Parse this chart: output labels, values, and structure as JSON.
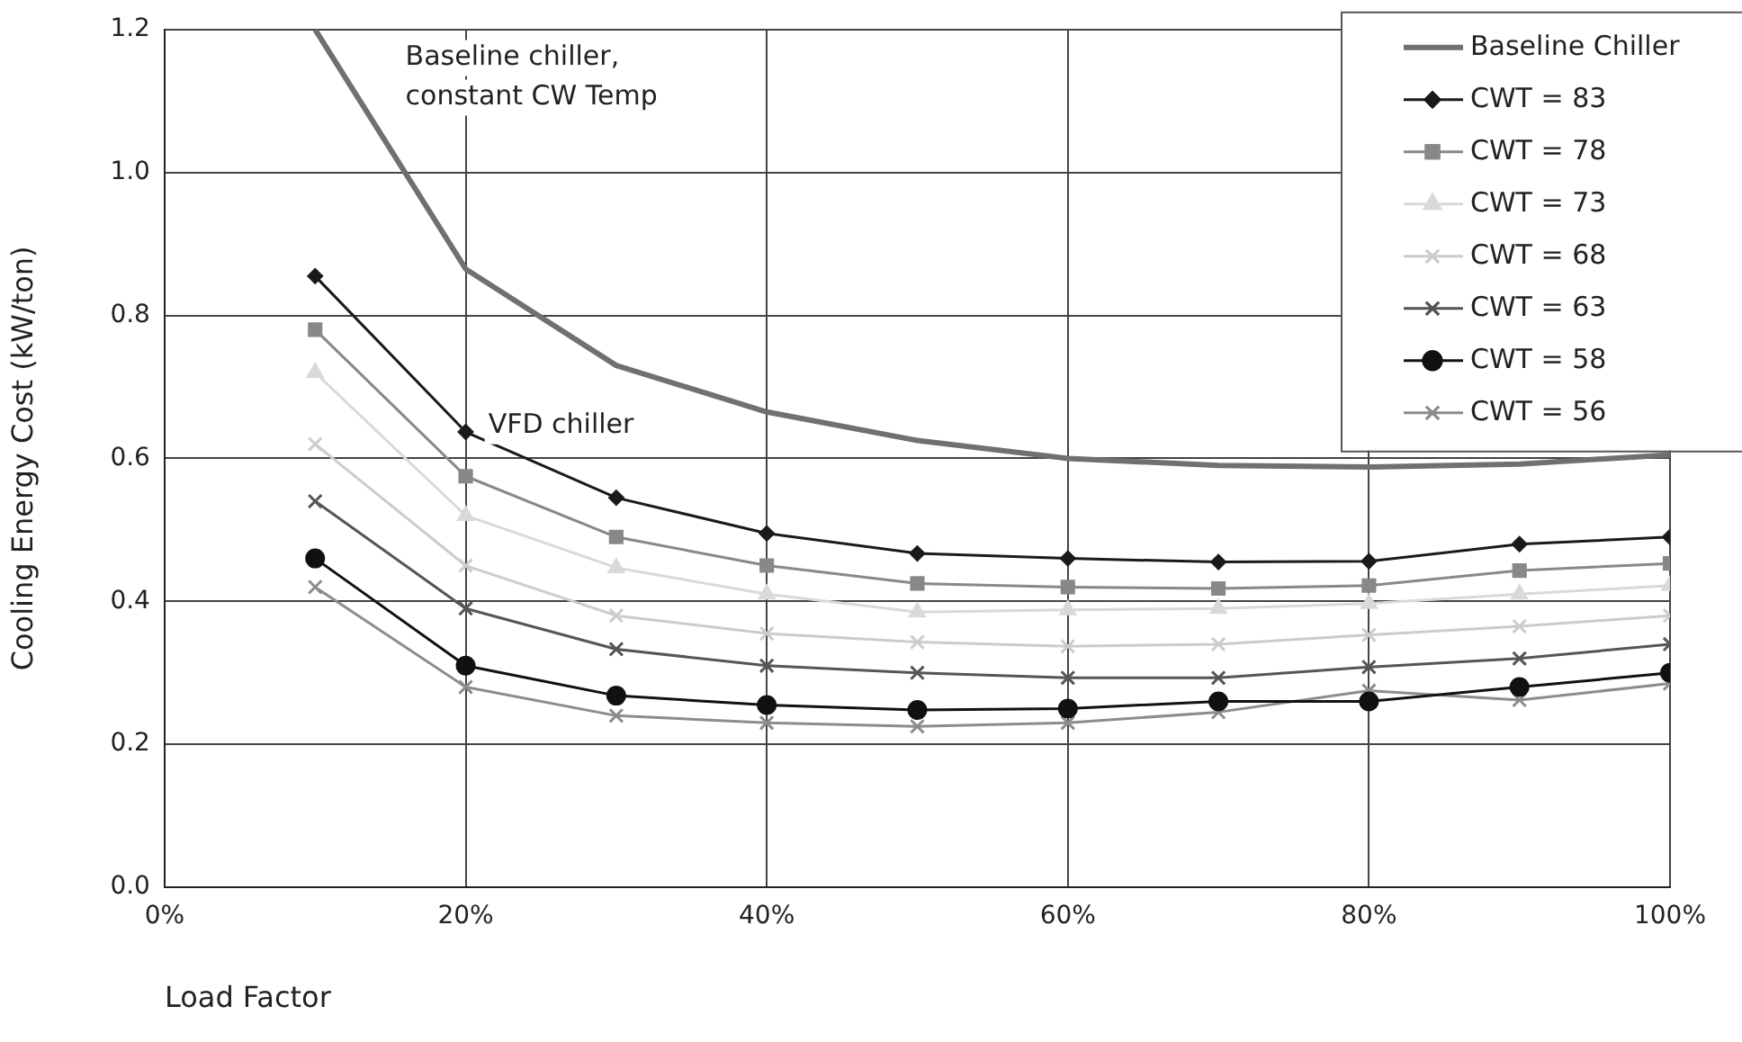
{
  "chart_data": {
    "type": "line",
    "xlabel": "Load Factor",
    "ylabel": "Cooling Energy Cost (kW/ton)",
    "x": [
      10,
      20,
      30,
      40,
      50,
      60,
      70,
      80,
      90,
      100
    ],
    "xlim": [
      0,
      100
    ],
    "xticks": [
      {
        "value": 0,
        "label": "0%"
      },
      {
        "value": 20,
        "label": "20%"
      },
      {
        "value": 40,
        "label": "40%"
      },
      {
        "value": 60,
        "label": "60%"
      },
      {
        "value": 80,
        "label": "80%"
      },
      {
        "value": 100,
        "label": "100%"
      }
    ],
    "ylim": [
      0,
      1.2
    ],
    "yticks": [
      {
        "value": 0,
        "label": "0.0"
      },
      {
        "value": 0.2,
        "label": "0.2"
      },
      {
        "value": 0.4,
        "label": "0.4"
      },
      {
        "value": 0.6,
        "label": "0.6"
      },
      {
        "value": 0.8,
        "label": "0.8"
      },
      {
        "value": 1.0,
        "label": "1.0"
      },
      {
        "value": 1.2,
        "label": "1.2"
      }
    ],
    "grid": true,
    "legend": "top right",
    "line_style": "solid",
    "series": [
      {
        "name": "Baseline Chiller",
        "color": "#707070",
        "marker": "none",
        "values": [
          1.2,
          0.865,
          0.73,
          0.665,
          0.625,
          0.6,
          0.59,
          0.588,
          0.592,
          0.605
        ]
      },
      {
        "name": "CWT = 83",
        "color": "#1a1a1a",
        "marker": "diamond",
        "values": [
          0.855,
          0.637,
          0.545,
          0.495,
          0.467,
          0.46,
          0.455,
          0.456,
          0.48,
          0.49
        ]
      },
      {
        "name": "CWT = 78",
        "color": "#888888",
        "marker": "square",
        "values": [
          0.78,
          0.575,
          0.49,
          0.45,
          0.425,
          0.42,
          0.418,
          0.422,
          0.443,
          0.453
        ]
      },
      {
        "name": "CWT = 73",
        "color": "#d9d9d9",
        "marker": "triangle",
        "values": [
          0.72,
          0.52,
          0.447,
          0.41,
          0.385,
          0.388,
          0.39,
          0.397,
          0.41,
          0.422
        ]
      },
      {
        "name": "CWT = 68",
        "color": "#cccccc",
        "marker": "cross",
        "values": [
          0.62,
          0.45,
          0.38,
          0.355,
          0.343,
          0.337,
          0.34,
          0.353,
          0.365,
          0.38
        ]
      },
      {
        "name": "CWT = 63",
        "color": "#555555",
        "marker": "cross",
        "values": [
          0.54,
          0.39,
          0.333,
          0.31,
          0.3,
          0.293,
          0.293,
          0.308,
          0.32,
          0.34
        ]
      },
      {
        "name": "CWT = 58",
        "color": "#111111",
        "marker": "circle",
        "values": [
          0.46,
          0.31,
          0.268,
          0.255,
          0.248,
          0.25,
          0.26,
          0.26,
          0.28,
          0.3
        ]
      },
      {
        "name": "CWT = 56",
        "color": "#8c8c8c",
        "marker": "cross",
        "values": [
          0.42,
          0.28,
          0.24,
          0.23,
          0.225,
          0.23,
          0.245,
          0.275,
          0.262,
          0.285
        ]
      }
    ],
    "annotations": [
      "Baseline chiller,\nconstant CW Temp",
      "VFD chiller"
    ]
  }
}
